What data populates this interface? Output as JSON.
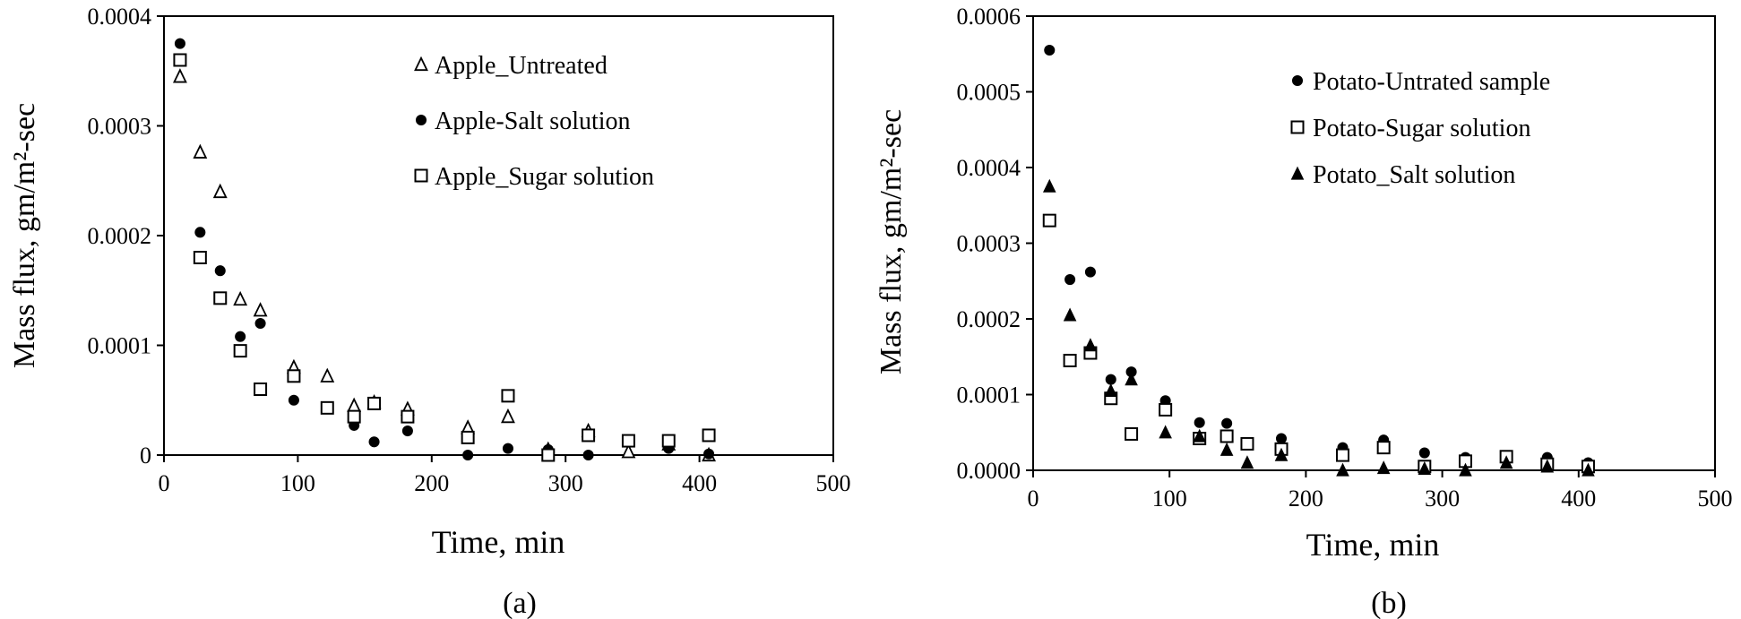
{
  "chart_data": [
    {
      "type": "scatter",
      "panel_label": "(a)",
      "xlabel": "Time, min",
      "ylabel": "Mass flux, gm/m²-sec",
      "xlim": [
        0,
        500
      ],
      "ylim": [
        0,
        0.0004
      ],
      "x_ticks": [
        "0",
        "100",
        "200",
        "300",
        "400",
        "500"
      ],
      "y_ticks": [
        "0",
        "0.0001",
        "0.0002",
        "0.0003",
        "0.0004"
      ],
      "grid": false,
      "legend_position": "top-right",
      "series": [
        {
          "name": "Apple_Untreated",
          "marker": "open-triangle",
          "points": [
            [
              12,
              0.000345
            ],
            [
              27,
              0.000276
            ],
            [
              42,
              0.00024
            ],
            [
              57,
              0.000142
            ],
            [
              72,
              0.000132
            ],
            [
              97,
              8e-05
            ],
            [
              122,
              7.2e-05
            ],
            [
              142,
              4.5e-05
            ],
            [
              157,
              4.8e-05
            ],
            [
              182,
              4.2e-05
            ],
            [
              227,
              2.5e-05
            ],
            [
              257,
              3.5e-05
            ],
            [
              287,
              5e-06
            ],
            [
              317,
              2.2e-05
            ],
            [
              347,
              3e-06
            ],
            [
              377,
              1e-05
            ],
            [
              407,
              0.0
            ]
          ]
        },
        {
          "name": "Apple-Salt solution",
          "marker": "filled-circle",
          "points": [
            [
              12,
              0.000375
            ],
            [
              27,
              0.000203
            ],
            [
              42,
              0.000168
            ],
            [
              57,
              0.000108
            ],
            [
              72,
              0.00012
            ],
            [
              97,
              5e-05
            ],
            [
              122,
              4.3e-05
            ],
            [
              142,
              2.7e-05
            ],
            [
              157,
              1.2e-05
            ],
            [
              182,
              2.2e-05
            ],
            [
              227,
              0.0
            ],
            [
              257,
              6e-06
            ],
            [
              287,
              5e-06
            ],
            [
              317,
              0.0
            ],
            [
              347,
              1.2e-05
            ],
            [
              377,
              6e-06
            ],
            [
              407,
              1e-06
            ]
          ]
        },
        {
          "name": "Apple_Sugar solution",
          "marker": "open-square",
          "points": [
            [
              12,
              0.00036
            ],
            [
              27,
              0.00018
            ],
            [
              42,
              0.000143
            ],
            [
              57,
              9.5e-05
            ],
            [
              72,
              6e-05
            ],
            [
              97,
              7.2e-05
            ],
            [
              122,
              4.3e-05
            ],
            [
              142,
              3.5e-05
            ],
            [
              157,
              4.7e-05
            ],
            [
              182,
              3.5e-05
            ],
            [
              227,
              1.6e-05
            ],
            [
              257,
              5.4e-05
            ],
            [
              287,
              0.0
            ],
            [
              317,
              1.8e-05
            ],
            [
              347,
              1.3e-05
            ],
            [
              377,
              1.3e-05
            ],
            [
              407,
              1.8e-05
            ]
          ]
        }
      ]
    },
    {
      "type": "scatter",
      "panel_label": "(b)",
      "xlabel": "Time, min",
      "ylabel": "Mass flux, gm/m²-sec",
      "xlim": [
        0,
        500
      ],
      "ylim": [
        0,
        0.0006
      ],
      "x_ticks": [
        "0",
        "100",
        "200",
        "300",
        "400",
        "500"
      ],
      "y_ticks": [
        "0.0000",
        "0.0001",
        "0.0002",
        "0.0003",
        "0.0004",
        "0.0005",
        "0.0006"
      ],
      "grid": false,
      "legend_position": "top-right",
      "series": [
        {
          "name": "Potato-Untrated sample",
          "marker": "filled-circle",
          "points": [
            [
              12,
              0.000555
            ],
            [
              27,
              0.000252
            ],
            [
              42,
              0.000262
            ],
            [
              57,
              0.00012
            ],
            [
              72,
              0.00013
            ],
            [
              97,
              9.2e-05
            ],
            [
              122,
              6.3e-05
            ],
            [
              142,
              6.2e-05
            ],
            [
              157,
              3.5e-05
            ],
            [
              182,
              4.2e-05
            ],
            [
              227,
              3e-05
            ],
            [
              257,
              4e-05
            ],
            [
              287,
              2.3e-05
            ],
            [
              317,
              1.7e-05
            ],
            [
              347,
              1.5e-05
            ],
            [
              377,
              1.7e-05
            ],
            [
              407,
              1e-05
            ]
          ]
        },
        {
          "name": "Potato-Sugar solution",
          "marker": "open-square",
          "points": [
            [
              12,
              0.00033
            ],
            [
              27,
              0.000145
            ],
            [
              42,
              0.000155
            ],
            [
              57,
              9.5e-05
            ],
            [
              72,
              4.8e-05
            ],
            [
              97,
              8e-05
            ],
            [
              122,
              4.2e-05
            ],
            [
              142,
              4.5e-05
            ],
            [
              157,
              3.5e-05
            ],
            [
              182,
              2.8e-05
            ],
            [
              227,
              2e-05
            ],
            [
              257,
              3e-05
            ],
            [
              287,
              5e-06
            ],
            [
              317,
              1.2e-05
            ],
            [
              347,
              1.8e-05
            ],
            [
              377,
              8e-06
            ],
            [
              407,
              5e-06
            ]
          ]
        },
        {
          "name": "Potato_Salt solution",
          "marker": "filled-triangle",
          "points": [
            [
              12,
              0.000375
            ],
            [
              27,
              0.000205
            ],
            [
              42,
              0.000165
            ],
            [
              57,
              0.000105
            ],
            [
              72,
              0.00012
            ],
            [
              97,
              5e-05
            ],
            [
              122,
              4.5e-05
            ],
            [
              142,
              2.7e-05
            ],
            [
              157,
              1e-05
            ],
            [
              182,
              2e-05
            ],
            [
              227,
              0.0
            ],
            [
              257,
              3e-06
            ],
            [
              287,
              2e-06
            ],
            [
              317,
              0.0
            ],
            [
              347,
              1e-05
            ],
            [
              377,
              5e-06
            ],
            [
              407,
              0.0
            ]
          ]
        }
      ]
    }
  ]
}
